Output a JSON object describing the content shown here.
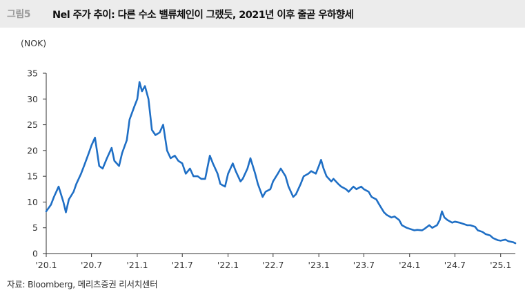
{
  "figure_label": "그림5",
  "title": "Nel 주가 추이: 다른 수소 밸류체인이 그랬듯, 2021년 이후 줄곧 우하향세",
  "source": "자료: Bloomberg, 메리츠증권 리서치센터",
  "colors": {
    "line": "#1f6fc5",
    "axis": "#333333",
    "title_bg": "#ececec"
  },
  "chart_data": {
    "type": "line",
    "title": "Nel 주가 추이: 다른 수소 밸류체인이 그랬듯, 2021년 이후 줄곧 우하향세",
    "ylabel": "(NOK)",
    "xlabel": "",
    "ylim": [
      0,
      35
    ],
    "yticks": [
      0,
      5,
      10,
      15,
      20,
      25,
      30,
      35
    ],
    "xlim": [
      "2020-01",
      "2025-03"
    ],
    "xtick_labels": [
      "'20.1",
      "'20.7",
      "'21.1",
      "'21.7",
      "'22.1",
      "'22.7",
      "'23.1",
      "'23.7",
      "'24.1",
      "'24.7",
      "'25.1"
    ],
    "xtick_dates": [
      "2020-01",
      "2020-07",
      "2021-01",
      "2021-07",
      "2022-01",
      "2022-07",
      "2023-01",
      "2023-07",
      "2024-01",
      "2024-07",
      "2025-01"
    ],
    "grid": false,
    "legend": "none",
    "series": [
      {
        "points": [
          [
            "2020-01",
            8.2
          ],
          [
            "2020-01-20",
            9.5
          ],
          [
            "2020-02",
            11.0
          ],
          [
            "2020-02-20",
            13.0
          ],
          [
            "2020-03-10",
            10.0
          ],
          [
            "2020-03-20",
            8.0
          ],
          [
            "2020-04",
            10.5
          ],
          [
            "2020-04-20",
            12.0
          ],
          [
            "2020-05",
            13.5
          ],
          [
            "2020-05-20",
            15.5
          ],
          [
            "2020-06",
            17.0
          ],
          [
            "2020-06-20",
            19.5
          ],
          [
            "2020-07",
            21.0
          ],
          [
            "2020-07-15",
            22.5
          ],
          [
            "2020-08",
            17.0
          ],
          [
            "2020-08-15",
            16.5
          ],
          [
            "2020-09",
            18.5
          ],
          [
            "2020-09-20",
            20.5
          ],
          [
            "2020-10",
            18.0
          ],
          [
            "2020-10-20",
            17.0
          ],
          [
            "2020-11",
            19.5
          ],
          [
            "2020-11-20",
            22.0
          ],
          [
            "2020-12",
            26.0
          ],
          [
            "2020-12-20",
            28.5
          ],
          [
            "2021-01",
            30.0
          ],
          [
            "2021-01-10",
            33.3
          ],
          [
            "2021-01-20",
            31.5
          ],
          [
            "2021-02",
            32.5
          ],
          [
            "2021-02-15",
            30.0
          ],
          [
            "2021-03",
            24.0
          ],
          [
            "2021-03-15",
            23.0
          ],
          [
            "2021-04",
            23.5
          ],
          [
            "2021-04-15",
            25.0
          ],
          [
            "2021-05",
            20.0
          ],
          [
            "2021-05-15",
            18.5
          ],
          [
            "2021-06",
            19.0
          ],
          [
            "2021-06-15",
            18.0
          ],
          [
            "2021-07",
            17.5
          ],
          [
            "2021-07-15",
            15.5
          ],
          [
            "2021-08",
            16.5
          ],
          [
            "2021-08-15",
            15.0
          ],
          [
            "2021-09",
            15.0
          ],
          [
            "2021-09-15",
            14.5
          ],
          [
            "2021-10",
            14.5
          ],
          [
            "2021-10-20",
            19.0
          ],
          [
            "2021-11",
            17.5
          ],
          [
            "2021-11-20",
            15.5
          ],
          [
            "2021-12",
            13.5
          ],
          [
            "2021-12-20",
            13.0
          ],
          [
            "2022-01",
            15.5
          ],
          [
            "2022-01-20",
            17.5
          ],
          [
            "2022-02",
            16.0
          ],
          [
            "2022-02-20",
            14.0
          ],
          [
            "2022-03",
            14.5
          ],
          [
            "2022-03-20",
            16.5
          ],
          [
            "2022-04",
            18.5
          ],
          [
            "2022-04-20",
            15.5
          ],
          [
            "2022-05",
            13.5
          ],
          [
            "2022-05-20",
            11.0
          ],
          [
            "2022-06",
            12.0
          ],
          [
            "2022-06-20",
            12.5
          ],
          [
            "2022-07",
            14.0
          ],
          [
            "2022-07-20",
            15.5
          ],
          [
            "2022-08",
            16.5
          ],
          [
            "2022-08-20",
            15.0
          ],
          [
            "2022-09",
            13.0
          ],
          [
            "2022-09-20",
            11.0
          ],
          [
            "2022-10",
            11.5
          ],
          [
            "2022-10-20",
            13.5
          ],
          [
            "2022-11",
            15.0
          ],
          [
            "2022-11-20",
            15.5
          ],
          [
            "2022-12",
            16.0
          ],
          [
            "2022-12-20",
            15.5
          ],
          [
            "2023-01",
            17.0
          ],
          [
            "2023-01-10",
            18.2
          ],
          [
            "2023-01-20",
            16.5
          ],
          [
            "2023-02",
            15.0
          ],
          [
            "2023-02-20",
            14.0
          ],
          [
            "2023-03",
            14.5
          ],
          [
            "2023-03-20",
            13.5
          ],
          [
            "2023-04",
            13.0
          ],
          [
            "2023-04-20",
            12.5
          ],
          [
            "2023-05",
            12.0
          ],
          [
            "2023-05-20",
            13.0
          ],
          [
            "2023-06",
            12.5
          ],
          [
            "2023-06-20",
            13.0
          ],
          [
            "2023-07",
            12.5
          ],
          [
            "2023-07-20",
            12.0
          ],
          [
            "2023-08",
            11.0
          ],
          [
            "2023-08-20",
            10.5
          ],
          [
            "2023-09",
            9.5
          ],
          [
            "2023-09-20",
            8.0
          ],
          [
            "2023-10",
            7.5
          ],
          [
            "2023-10-20",
            7.0
          ],
          [
            "2023-11",
            7.2
          ],
          [
            "2023-11-20",
            6.5
          ],
          [
            "2023-12",
            5.5
          ],
          [
            "2023-12-20",
            5.0
          ],
          [
            "2024-01",
            4.8
          ],
          [
            "2024-01-20",
            4.5
          ],
          [
            "2024-02",
            4.6
          ],
          [
            "2024-02-20",
            4.5
          ],
          [
            "2024-03",
            4.8
          ],
          [
            "2024-03-20",
            5.5
          ],
          [
            "2024-04",
            5.0
          ],
          [
            "2024-04-20",
            5.5
          ],
          [
            "2024-05",
            6.5
          ],
          [
            "2024-05-10",
            8.2
          ],
          [
            "2024-05-20",
            7.0
          ],
          [
            "2024-06",
            6.5
          ],
          [
            "2024-06-20",
            6.0
          ],
          [
            "2024-07",
            6.2
          ],
          [
            "2024-07-20",
            6.0
          ],
          [
            "2024-08",
            5.8
          ],
          [
            "2024-08-20",
            5.5
          ],
          [
            "2024-09",
            5.5
          ],
          [
            "2024-09-20",
            5.2
          ],
          [
            "2024-10",
            4.5
          ],
          [
            "2024-10-20",
            4.2
          ],
          [
            "2024-11",
            3.8
          ],
          [
            "2024-11-20",
            3.5
          ],
          [
            "2024-12",
            3.0
          ],
          [
            "2024-12-20",
            2.6
          ],
          [
            "2025-01",
            2.5
          ],
          [
            "2025-01-20",
            2.7
          ],
          [
            "2025-02",
            2.4
          ],
          [
            "2025-02-20",
            2.2
          ],
          [
            "2025-03",
            2.0
          ]
        ]
      }
    ]
  }
}
